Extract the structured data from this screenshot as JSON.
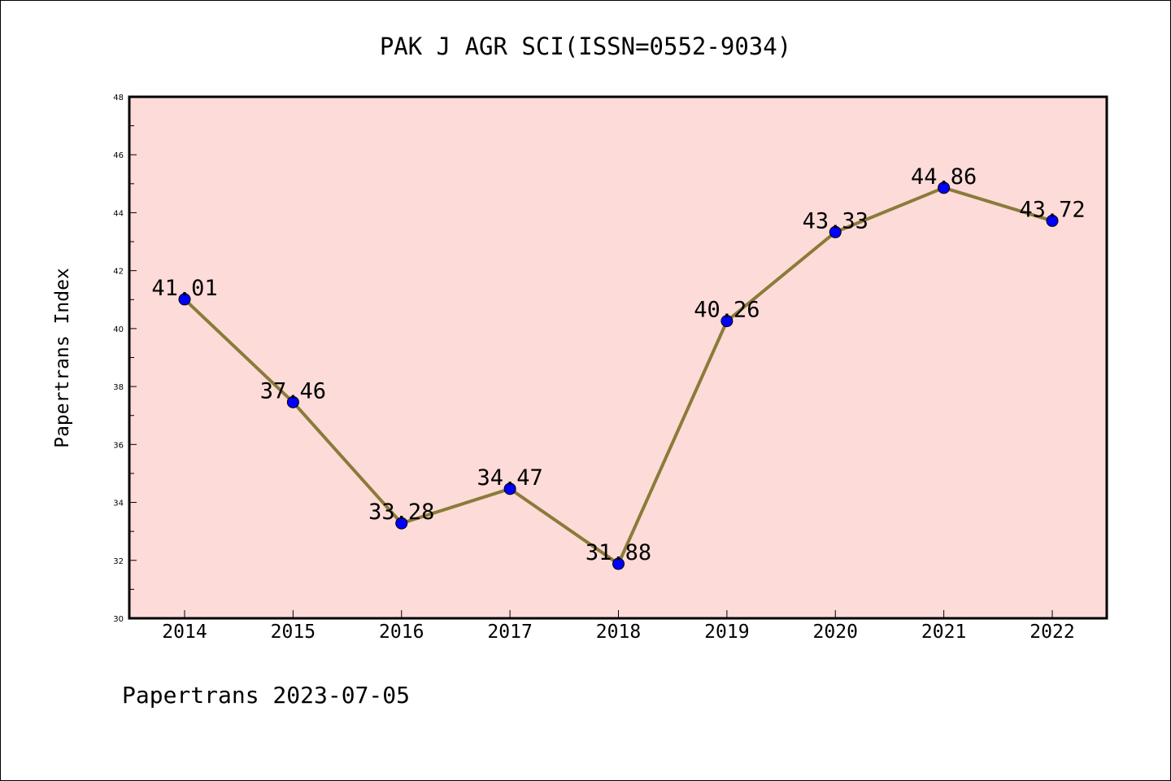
{
  "chart_data": {
    "type": "line",
    "title": "PAK J AGR SCI(ISSN=0552-9034)",
    "ylabel": "Papertrans Index",
    "xlabel": "",
    "categories": [
      "2014",
      "2015",
      "2016",
      "2017",
      "2018",
      "2019",
      "2020",
      "2021",
      "2022"
    ],
    "values": [
      41.01,
      37.46,
      33.28,
      34.47,
      31.88,
      40.26,
      43.33,
      44.86,
      43.72
    ],
    "data_labels": [
      "41.01",
      "37.46",
      "33.28",
      "34.47",
      "31.88",
      "40.26",
      "43.33",
      "44.86",
      "43.72"
    ],
    "ylim": [
      30,
      48
    ],
    "yticks": [
      "30",
      "32",
      "34",
      "36",
      "38",
      "40",
      "42",
      "44",
      "46",
      "48"
    ],
    "grid": false,
    "line_color": "#8b7b3a",
    "marker_color": "#0000ff",
    "plot_background": "#fddbd8"
  },
  "footer": {
    "text": "Papertrans 2023-07-05"
  }
}
